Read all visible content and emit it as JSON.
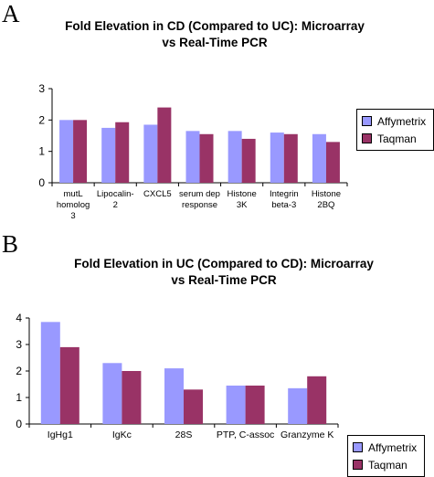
{
  "panels": [
    {
      "letter": "A",
      "title_line1": "Fold Elevation in CD (Compared to UC): Microarray",
      "title_line2": "vs Real-Time PCR"
    },
    {
      "letter": "B",
      "title_line1": "Fold Elevation  in UC  (Compared to CD): Microarray",
      "title_line2": "vs Real-Time PCR"
    }
  ],
  "colors": {
    "affymetrix": "#9999ff",
    "taqman": "#993366"
  },
  "chart_data": [
    {
      "type": "bar",
      "categories": [
        [
          "mutL",
          "homolog",
          "3"
        ],
        [
          "Lipocalin-",
          "2"
        ],
        [
          "CXCL5"
        ],
        [
          "serum dep",
          "response"
        ],
        [
          "Histone",
          "3K"
        ],
        [
          "Integrin",
          "beta-3"
        ],
        [
          "Histone",
          "2BQ"
        ]
      ],
      "series": [
        {
          "name": "Affymetrix",
          "values": [
            2.0,
            1.75,
            1.85,
            1.65,
            1.65,
            1.6,
            1.55
          ]
        },
        {
          "name": "Taqman",
          "values": [
            2.0,
            1.93,
            2.4,
            1.55,
            1.4,
            1.55,
            1.3
          ]
        }
      ],
      "ylim": [
        0,
        3
      ],
      "yticks": [
        0,
        1,
        2,
        3
      ],
      "title": "Fold Elevation in CD (Compared to UC): Microarray vs Real-Time PCR",
      "legend": "right"
    },
    {
      "type": "bar",
      "categories": [
        [
          "IgHg1"
        ],
        [
          "IgKc"
        ],
        [
          "28S"
        ],
        [
          "PTP, C-assoc"
        ],
        [
          "Granzyme K"
        ]
      ],
      "series": [
        {
          "name": "Affymetrix",
          "values": [
            3.85,
            2.3,
            2.1,
            1.45,
            1.35
          ]
        },
        {
          "name": "Taqman",
          "values": [
            2.9,
            2.0,
            1.3,
            1.45,
            1.8
          ]
        }
      ],
      "ylim": [
        0,
        4
      ],
      "yticks": [
        0,
        1,
        2,
        3,
        4
      ],
      "title": "Fold Elevation  in UC  (Compared to CD): Microarray vs Real-Time PCR",
      "legend": "right"
    }
  ]
}
